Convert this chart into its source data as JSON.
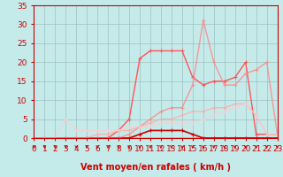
{
  "xlabel": "Vent moyen/en rafales ( km/h )",
  "xlim": [
    0,
    23
  ],
  "ylim": [
    0,
    35
  ],
  "xticks": [
    0,
    1,
    2,
    3,
    4,
    5,
    6,
    7,
    8,
    9,
    10,
    11,
    12,
    13,
    14,
    15,
    16,
    17,
    18,
    19,
    20,
    21,
    22,
    23
  ],
  "yticks": [
    0,
    5,
    10,
    15,
    20,
    25,
    30,
    35
  ],
  "background_color": "#c5eaea",
  "grid_color": "#9fbfbf",
  "lines": [
    {
      "x": [
        0,
        1,
        2,
        3,
        4,
        5,
        6,
        7,
        8,
        9,
        10,
        11,
        12,
        13,
        14,
        15,
        16,
        17,
        18,
        19,
        20,
        21,
        22,
        23
      ],
      "y": [
        0,
        0,
        0,
        0,
        0,
        0,
        0,
        0,
        0,
        0,
        1,
        2,
        2,
        2,
        2,
        1,
        0,
        0,
        0,
        0,
        0,
        0,
        0,
        0
      ],
      "color": "#cc0000",
      "alpha": 1.0,
      "lw": 1.2,
      "marker": "+"
    },
    {
      "x": [
        0,
        1,
        2,
        3,
        4,
        5,
        6,
        7,
        8,
        9,
        10,
        11,
        12,
        13,
        14,
        15,
        16,
        17,
        18,
        19,
        20,
        21,
        22,
        23
      ],
      "y": [
        0,
        0,
        0,
        0,
        0,
        0,
        0,
        0,
        2,
        5,
        21,
        23,
        23,
        23,
        23,
        16,
        14,
        15,
        15,
        16,
        20,
        1,
        1,
        1
      ],
      "color": "#ff5555",
      "alpha": 1.0,
      "lw": 1.0,
      "marker": "+"
    },
    {
      "x": [
        0,
        1,
        2,
        3,
        4,
        5,
        6,
        7,
        8,
        9,
        10,
        11,
        12,
        13,
        14,
        15,
        16,
        17,
        18,
        19,
        20,
        21,
        22,
        23
      ],
      "y": [
        0,
        0,
        0,
        0,
        0,
        0,
        0,
        0,
        0,
        1,
        3,
        5,
        7,
        8,
        8,
        14,
        31,
        20,
        14,
        14,
        17,
        18,
        20,
        1
      ],
      "color": "#ff8888",
      "alpha": 0.85,
      "lw": 1.0,
      "marker": "+"
    },
    {
      "x": [
        0,
        1,
        2,
        3,
        4,
        5,
        6,
        7,
        8,
        9,
        10,
        11,
        12,
        13,
        14,
        15,
        16,
        17,
        18,
        19,
        20,
        21,
        22,
        23
      ],
      "y": [
        0,
        0,
        0,
        0,
        0,
        0,
        1,
        1,
        2,
        2,
        3,
        4,
        5,
        5,
        6,
        7,
        7,
        8,
        8,
        9,
        9,
        6,
        1,
        1
      ],
      "color": "#ffaaaa",
      "alpha": 0.8,
      "lw": 1.0,
      "marker": "+"
    },
    {
      "x": [
        0,
        1,
        2,
        3,
        4,
        5,
        6,
        7,
        8,
        9,
        10,
        11,
        12,
        13,
        14,
        15,
        16,
        17,
        18,
        19,
        20,
        21,
        22,
        23
      ],
      "y": [
        0,
        0,
        0,
        5,
        2,
        2,
        2,
        2,
        2,
        3,
        3,
        3,
        4,
        4,
        4,
        4,
        5,
        6,
        7,
        8,
        9,
        6,
        1,
        1
      ],
      "color": "#ffcccc",
      "alpha": 0.7,
      "lw": 1.0,
      "marker": "+"
    }
  ],
  "spine_color": "#cc0000",
  "tick_color": "#cc0000",
  "label_color": "#cc0000",
  "font_size": 6.5
}
